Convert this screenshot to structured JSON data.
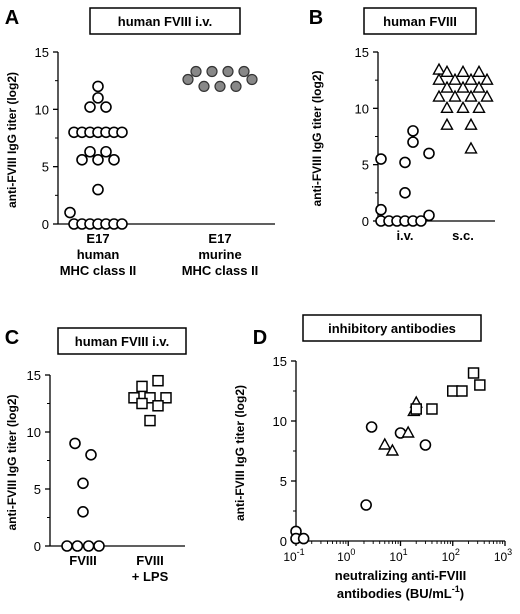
{
  "chart_data": [
    {
      "panel_letter": "A",
      "type": "scatter",
      "title": "human FVIII i.v.",
      "ylabel": "anti-FVIII IgG titer (log2)",
      "ylim": [
        0,
        15
      ],
      "yticks": [
        "0",
        "5",
        "10",
        "15"
      ],
      "grid": false,
      "categories": [
        {
          "lines": [
            "E17",
            "human",
            "MHC class II"
          ]
        },
        {
          "lines": [
            "E17",
            "murine",
            "MHC class II"
          ]
        }
      ],
      "series": [
        {
          "category": 0,
          "marker": "circle-open",
          "points": [
            {
              "dx": 0,
              "y": 12
            },
            {
              "dx": 0,
              "y": 11
            },
            {
              "dx": -1,
              "y": 10.2
            },
            {
              "dx": 1,
              "y": 10.2
            },
            {
              "dx": -3,
              "y": 8
            },
            {
              "dx": -2,
              "y": 8
            },
            {
              "dx": -1,
              "y": 8
            },
            {
              "dx": 0,
              "y": 8
            },
            {
              "dx": 1,
              "y": 8
            },
            {
              "dx": 2,
              "y": 8
            },
            {
              "dx": 3,
              "y": 8
            },
            {
              "dx": -1,
              "y": 6.3
            },
            {
              "dx": 1,
              "y": 6.3
            },
            {
              "dx": -2,
              "y": 5.6
            },
            {
              "dx": 0,
              "y": 5.6
            },
            {
              "dx": 2,
              "y": 5.6
            },
            {
              "dx": 0,
              "y": 3
            },
            {
              "dx": -3.5,
              "y": 1
            },
            {
              "dx": -3,
              "y": 0
            },
            {
              "dx": -2,
              "y": 0
            },
            {
              "dx": -1,
              "y": 0
            },
            {
              "dx": 0,
              "y": 0
            },
            {
              "dx": 1,
              "y": 0
            },
            {
              "dx": 2,
              "y": 0
            },
            {
              "dx": 3,
              "y": 0
            }
          ]
        },
        {
          "category": 1,
          "marker": "circle-filled",
          "points": [
            {
              "dx": -3,
              "y": 13.3
            },
            {
              "dx": -1,
              "y": 13.3
            },
            {
              "dx": 1,
              "y": 13.3
            },
            {
              "dx": 3,
              "y": 13.3
            },
            {
              "dx": -4,
              "y": 12.6
            },
            {
              "dx": 4,
              "y": 12.6
            },
            {
              "dx": -2,
              "y": 12
            },
            {
              "dx": 0,
              "y": 12
            },
            {
              "dx": 2,
              "y": 12
            }
          ]
        }
      ]
    },
    {
      "panel_letter": "B",
      "type": "scatter",
      "title": "human FVIII",
      "ylabel": "anti-FVIII IgG titer (log2)",
      "ylim": [
        0,
        15
      ],
      "yticks": [
        "0",
        "5",
        "10",
        "15"
      ],
      "grid": false,
      "categories": [
        {
          "lines": [
            "i.v."
          ]
        },
        {
          "lines": [
            "s.c."
          ]
        }
      ],
      "series": [
        {
          "category": 0,
          "marker": "circle-open",
          "points": [
            {
              "dx": 1,
              "y": 8
            },
            {
              "dx": 1,
              "y": 7
            },
            {
              "dx": 3,
              "y": 6
            },
            {
              "dx": -3,
              "y": 5.5
            },
            {
              "dx": 0,
              "y": 5.2
            },
            {
              "dx": 0,
              "y": 2.5
            },
            {
              "dx": -3,
              "y": 1
            },
            {
              "dx": 3,
              "y": 0.5
            },
            {
              "dx": -3,
              "y": 0
            },
            {
              "dx": -2,
              "y": 0
            },
            {
              "dx": -1,
              "y": 0
            },
            {
              "dx": 0,
              "y": 0
            },
            {
              "dx": 1,
              "y": 0
            },
            {
              "dx": 2,
              "y": 0
            }
          ]
        },
        {
          "category": 1,
          "marker": "triangle-open",
          "points": [
            {
              "dx": -3,
              "y": 13.4
            },
            {
              "dx": -2,
              "y": 13.2
            },
            {
              "dx": 0,
              "y": 13.2
            },
            {
              "dx": 2,
              "y": 13.2
            },
            {
              "dx": -3,
              "y": 12.5
            },
            {
              "dx": -1,
              "y": 12.5
            },
            {
              "dx": 1,
              "y": 12.5
            },
            {
              "dx": 3,
              "y": 12.5
            },
            {
              "dx": -2,
              "y": 11.8
            },
            {
              "dx": 0,
              "y": 11.8
            },
            {
              "dx": 2,
              "y": 11.8
            },
            {
              "dx": -3,
              "y": 11
            },
            {
              "dx": -1,
              "y": 11
            },
            {
              "dx": 1,
              "y": 11
            },
            {
              "dx": 3,
              "y": 11
            },
            {
              "dx": -2,
              "y": 10
            },
            {
              "dx": 0,
              "y": 10
            },
            {
              "dx": 2,
              "y": 10
            },
            {
              "dx": -2,
              "y": 8.5
            },
            {
              "dx": 1,
              "y": 8.5
            },
            {
              "dx": 1,
              "y": 6.4
            }
          ]
        }
      ]
    },
    {
      "panel_letter": "C",
      "type": "scatter",
      "title": "human FVIII i.v.",
      "ylabel": "anti-FVIII IgG titer (log2)",
      "ylim": [
        0,
        15
      ],
      "yticks": [
        "0",
        "5",
        "10",
        "15"
      ],
      "grid": false,
      "categories": [
        {
          "lines": [
            "FVIII"
          ]
        },
        {
          "lines": [
            "FVIII",
            "+ LPS"
          ]
        }
      ],
      "series": [
        {
          "category": 0,
          "marker": "circle-open",
          "points": [
            {
              "dx": -1,
              "y": 9
            },
            {
              "dx": 1,
              "y": 8
            },
            {
              "dx": 0,
              "y": 5.5
            },
            {
              "dx": 0,
              "y": 3
            },
            {
              "dx": -2,
              "y": 0
            },
            {
              "dx": -0.7,
              "y": 0
            },
            {
              "dx": 0.7,
              "y": 0
            },
            {
              "dx": 2,
              "y": 0
            }
          ]
        },
        {
          "category": 1,
          "marker": "square-open",
          "points": [
            {
              "dx": 1,
              "y": 14.5
            },
            {
              "dx": -1,
              "y": 14
            },
            {
              "dx": -2,
              "y": 13
            },
            {
              "dx": 0,
              "y": 13
            },
            {
              "dx": 2,
              "y": 13
            },
            {
              "dx": -1,
              "y": 12.5
            },
            {
              "dx": 1,
              "y": 12.3
            },
            {
              "dx": 0,
              "y": 11
            }
          ]
        }
      ]
    },
    {
      "panel_letter": "D",
      "type": "scatter",
      "title": "inhibitory antibodies",
      "ylabel": "anti-FVIII IgG titer (log2)",
      "xlabel_lines": [
        "neutralizing anti-FVIII",
        "antibodies (BU/mL"
      ],
      "xlabel_sup": "-1",
      "xlabel_close": ")",
      "xscale": "log",
      "xlim": [
        0.1,
        1000
      ],
      "xticks": [
        {
          "base": "10",
          "exp": "-1"
        },
        {
          "base": "10",
          "exp": "0"
        },
        {
          "base": "10",
          "exp": "1"
        },
        {
          "base": "10",
          "exp": "2"
        },
        {
          "base": "10",
          "exp": "3"
        }
      ],
      "ylim": [
        0,
        15
      ],
      "yticks": [
        "0",
        "5",
        "10",
        "15"
      ],
      "grid": false,
      "series": [
        {
          "marker": "circle-open",
          "points": [
            {
              "x": 0.1,
              "y": 0.8
            },
            {
              "x": 0.1,
              "y": 0.2
            },
            {
              "x": 0.14,
              "y": 0.2
            },
            {
              "x": 2.2,
              "y": 3
            },
            {
              "x": 2.8,
              "y": 9.5
            },
            {
              "x": 10,
              "y": 9
            },
            {
              "x": 30,
              "y": 8
            }
          ]
        },
        {
          "marker": "triangle-open",
          "points": [
            {
              "x": 5,
              "y": 8
            },
            {
              "x": 7,
              "y": 7.5
            },
            {
              "x": 14,
              "y": 9
            },
            {
              "x": 18,
              "y": 10.8
            },
            {
              "x": 20,
              "y": 11.5
            }
          ]
        },
        {
          "marker": "square-open",
          "points": [
            {
              "x": 20,
              "y": 11
            },
            {
              "x": 40,
              "y": 11
            },
            {
              "x": 100,
              "y": 12.5
            },
            {
              "x": 150,
              "y": 12.5
            },
            {
              "x": 250,
              "y": 14
            },
            {
              "x": 330,
              "y": 13
            }
          ]
        }
      ]
    }
  ]
}
